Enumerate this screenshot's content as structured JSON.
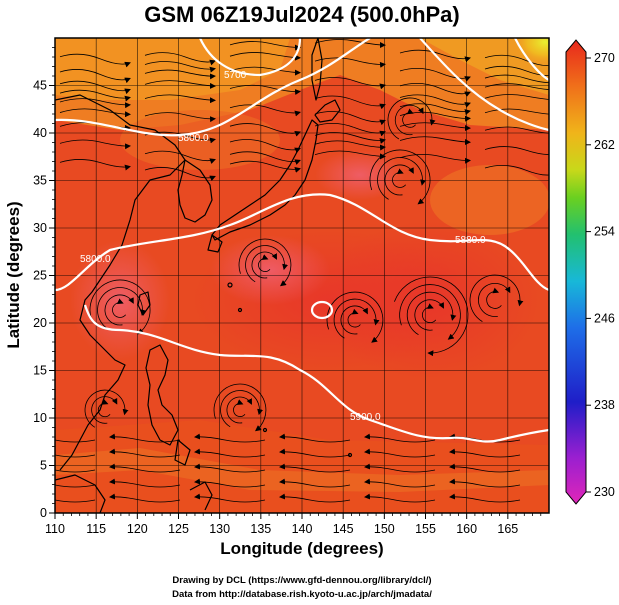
{
  "title": "GSM 06Z19Jul2024 (500.0hPa)",
  "x_axis": {
    "label": "Longitude (degrees)",
    "ticks": [
      "110",
      "115",
      "120",
      "125",
      "130",
      "135",
      "140",
      "145",
      "150",
      "155",
      "160",
      "165"
    ],
    "range": [
      110,
      170
    ]
  },
  "y_axis": {
    "label": "Latitude  (degrees)",
    "ticks": [
      "0",
      "5",
      "10",
      "15",
      "20",
      "25",
      "30",
      "35",
      "40",
      "45"
    ],
    "range": [
      0,
      50
    ]
  },
  "colorbar": {
    "ticks": [
      "270",
      "262",
      "254",
      "246",
      "238",
      "230"
    ],
    "range": [
      230,
      270
    ]
  },
  "contour_labels": [
    "5700",
    "5800.0",
    "5800.0",
    "5880.0",
    "5900.0"
  ],
  "footer": {
    "line1": "Drawing by DCL (https://www.gfd-dennou.org/library/dcl/)",
    "line2": "Data from http://database.rish.kyoto-u.ac.jp/arch/jmadata/"
  }
}
